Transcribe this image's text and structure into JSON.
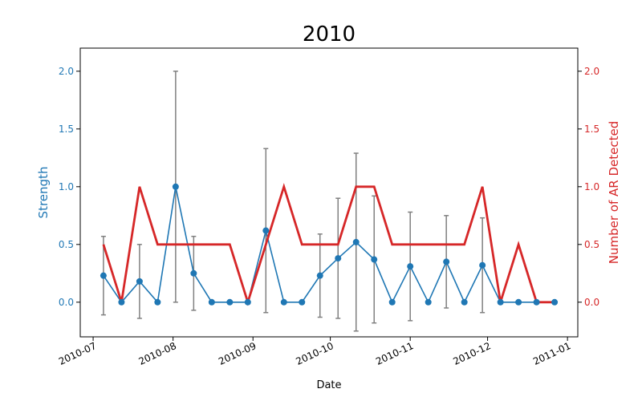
{
  "chart_data": {
    "type": "line",
    "title": "2010",
    "xlabel": "Date",
    "x_tick_labels": [
      "2010-07",
      "2010-08",
      "2010-09",
      "2010-10",
      "2010-11",
      "2010-12",
      "2011-01"
    ],
    "x_tick_dates": [
      "2010-07-01",
      "2010-08-01",
      "2010-09-01",
      "2010-10-01",
      "2010-11-01",
      "2010-12-01",
      "2011-01-01"
    ],
    "xlim": [
      "2010-06-26",
      "2011-01-05"
    ],
    "grid": false,
    "x": [
      "2010-07-05",
      "2010-07-12",
      "2010-07-19",
      "2010-07-26",
      "2010-08-02",
      "2010-08-09",
      "2010-08-16",
      "2010-08-23",
      "2010-08-30",
      "2010-09-06",
      "2010-09-13",
      "2010-09-20",
      "2010-09-27",
      "2010-10-04",
      "2010-10-11",
      "2010-10-18",
      "2010-10-25",
      "2010-11-01",
      "2010-11-08",
      "2010-11-15",
      "2010-11-22",
      "2010-11-29",
      "2010-12-06",
      "2010-12-13",
      "2010-12-20",
      "2010-12-27"
    ],
    "left_axis": {
      "label": "Strength",
      "color": "#1f77b4",
      "ylim": [
        -0.3,
        2.2
      ],
      "ticks": [
        "0.0",
        "0.5",
        "1.0",
        "1.5",
        "2.0"
      ],
      "tick_values": [
        0,
        0.5,
        1.0,
        1.5,
        2.0
      ]
    },
    "right_axis": {
      "label": "Number of AR Detected",
      "color": "#d62728",
      "ylim": [
        -0.3,
        2.2
      ],
      "ticks": [
        "0.0",
        "0.5",
        "1.0",
        "1.5",
        "2.0"
      ],
      "tick_values": [
        0,
        0.5,
        1.0,
        1.5,
        2.0
      ]
    },
    "series": [
      {
        "axis": "left",
        "color": "#1f77b4",
        "marker": "circle",
        "values": [
          0.23,
          0,
          0.18,
          0,
          1.0,
          0.25,
          0,
          0,
          0,
          0.62,
          0,
          0,
          0.23,
          0.38,
          0.52,
          0.37,
          0,
          0.31,
          0,
          0.35,
          0,
          0.32,
          0,
          0,
          0,
          0
        ],
        "errors": [
          0.34,
          0,
          0.32,
          0,
          1.0,
          0.32,
          0,
          0,
          0,
          0.71,
          0,
          0,
          0.36,
          0.52,
          0.77,
          0.55,
          0,
          0.47,
          0,
          0.4,
          0,
          0.41,
          0,
          0,
          0,
          0
        ],
        "error_color": "#808080"
      },
      {
        "axis": "right",
        "color": "#d62728",
        "values": [
          0.5,
          0,
          1,
          0.5,
          0.5,
          0.5,
          0.5,
          0.5,
          0,
          0.5,
          1,
          0.5,
          0.5,
          0.5,
          1,
          1,
          0.5,
          0.5,
          0.5,
          0.5,
          0.5,
          1,
          0,
          0.5,
          0,
          0
        ]
      }
    ]
  }
}
